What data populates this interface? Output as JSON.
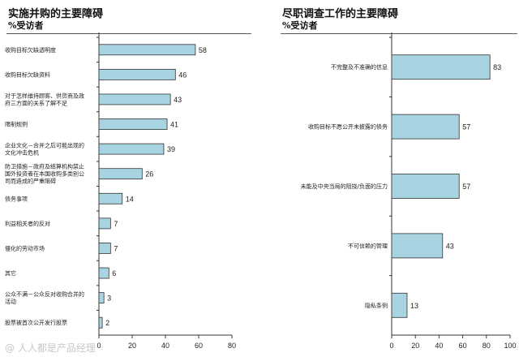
{
  "watermark": "@ 人人都是产品经理",
  "chart_data": [
    {
      "type": "bar",
      "orientation": "horizontal",
      "title": "实施并购的主要障碍",
      "subtitle": "%受访者",
      "categories": [
        "收购目标欠缺透明度",
        "收购目标欠缺资料",
        "对于怎样维持顾客、供货商及政府三方面的关系了解不足",
        "限制规例",
        "企业文化－合并之后可能出现的文化冲击危机",
        "防卫措施－政府及结算机构禁止国外投资者在本国收购多类别公司而造成的严重阻碍",
        "债务事项",
        "利益相关者的反对",
        "僵化的劳动市场",
        "其它",
        "公众不满－公众反对收购合并的活动",
        "股票被首次公开发行股票"
      ],
      "values": [
        58,
        46,
        43,
        41,
        39,
        26,
        14,
        7,
        7,
        6,
        3,
        2
      ],
      "xlim": [
        0,
        80
      ],
      "xticks": [
        0,
        20,
        40,
        60,
        80
      ],
      "bar_color": "#a8d4e2",
      "grid": false
    },
    {
      "type": "bar",
      "orientation": "horizontal",
      "title": "尽职调查工作的主要障碍",
      "subtitle": "%受访者",
      "categories": [
        "不完整及不准确的信息",
        "收购目标不愿公开未披露的债务",
        "未能及中央当局的阻挠/负面的压力",
        "不可信赖的管理",
        "隐私条例"
      ],
      "values": [
        83,
        57,
        57,
        43,
        13
      ],
      "xlim": [
        0,
        100
      ],
      "xticks": [
        0,
        20,
        40,
        60,
        80,
        100
      ],
      "bar_color": "#a8d4e2",
      "grid": false
    }
  ]
}
